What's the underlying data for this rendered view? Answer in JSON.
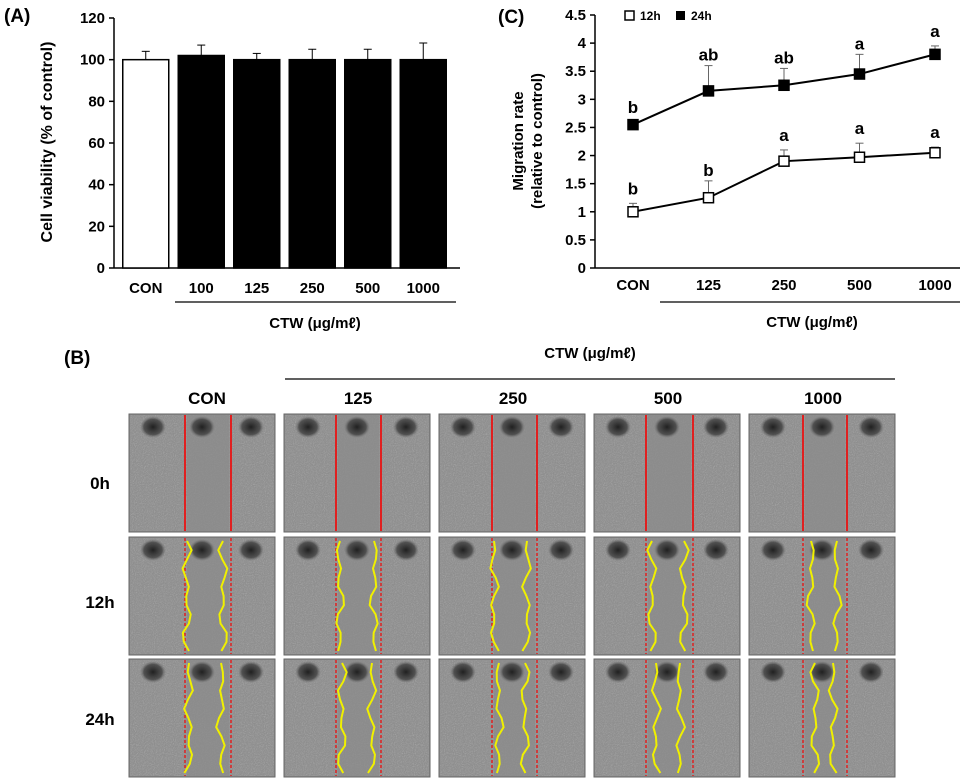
{
  "panel_a": {
    "label": "(A)",
    "ylabel": "Cell viability (% of control)",
    "group_label": "CTW (μg/mℓ)",
    "chart_data": {
      "type": "bar",
      "categories": [
        "CON",
        "100",
        "125",
        "250",
        "500",
        "1000"
      ],
      "values": [
        100,
        102,
        100,
        100,
        100,
        100
      ],
      "errors": [
        4,
        5,
        3,
        5,
        5,
        8
      ],
      "fills": [
        "#ffffff",
        "#000000",
        "#000000",
        "#000000",
        "#000000",
        "#000000"
      ],
      "ylabel": "Cell viability (% of control)",
      "xlabel": "CTW (μg/mℓ)",
      "ylim": [
        0,
        120
      ],
      "yticks": [
        "0",
        "20",
        "40",
        "60",
        "80",
        "100",
        "120"
      ]
    }
  },
  "panel_c": {
    "label": "(C)",
    "ylabel_line1": "Migration rate",
    "ylabel_line2": "(relative to control)",
    "group_label": "CTW (μg/mℓ)",
    "chart_data": {
      "type": "line",
      "categories": [
        "CON",
        "125",
        "250",
        "500",
        "1000"
      ],
      "ylim": [
        0,
        4.5
      ],
      "yticks": [
        "0",
        "0.5",
        "1",
        "1.5",
        "2",
        "2.5",
        "3",
        "3.5",
        "4",
        "4.5"
      ],
      "ylabel": "Migration rate (relative to control)",
      "xlabel": "CTW (μg/mℓ)",
      "legend_position": "top",
      "series": [
        {
          "name": "12h",
          "marker": "open-square",
          "values": [
            1.0,
            1.25,
            1.9,
            1.97,
            2.05
          ],
          "errors": [
            0.15,
            0.3,
            0.2,
            0.25,
            0.1
          ],
          "letters": [
            "b",
            "b",
            "a",
            "a",
            "a"
          ]
        },
        {
          "name": "24h",
          "marker": "filled-square",
          "values": [
            2.55,
            3.15,
            3.25,
            3.45,
            3.8
          ],
          "errors": [
            0.05,
            0.45,
            0.3,
            0.35,
            0.15
          ],
          "letters": [
            "b",
            "ab",
            "ab",
            "a",
            "a"
          ]
        }
      ]
    }
  },
  "panel_b": {
    "label": "(B)",
    "group_label": "CTW (μg/mℓ)",
    "columns": [
      "CON",
      "125",
      "250",
      "500",
      "1000"
    ],
    "rows": [
      "0h",
      "12h",
      "24h"
    ]
  },
  "colors": {
    "red_line": "#e02020",
    "yellow_line": "#f0f000",
    "micro_bg": "#8e8e8e"
  }
}
